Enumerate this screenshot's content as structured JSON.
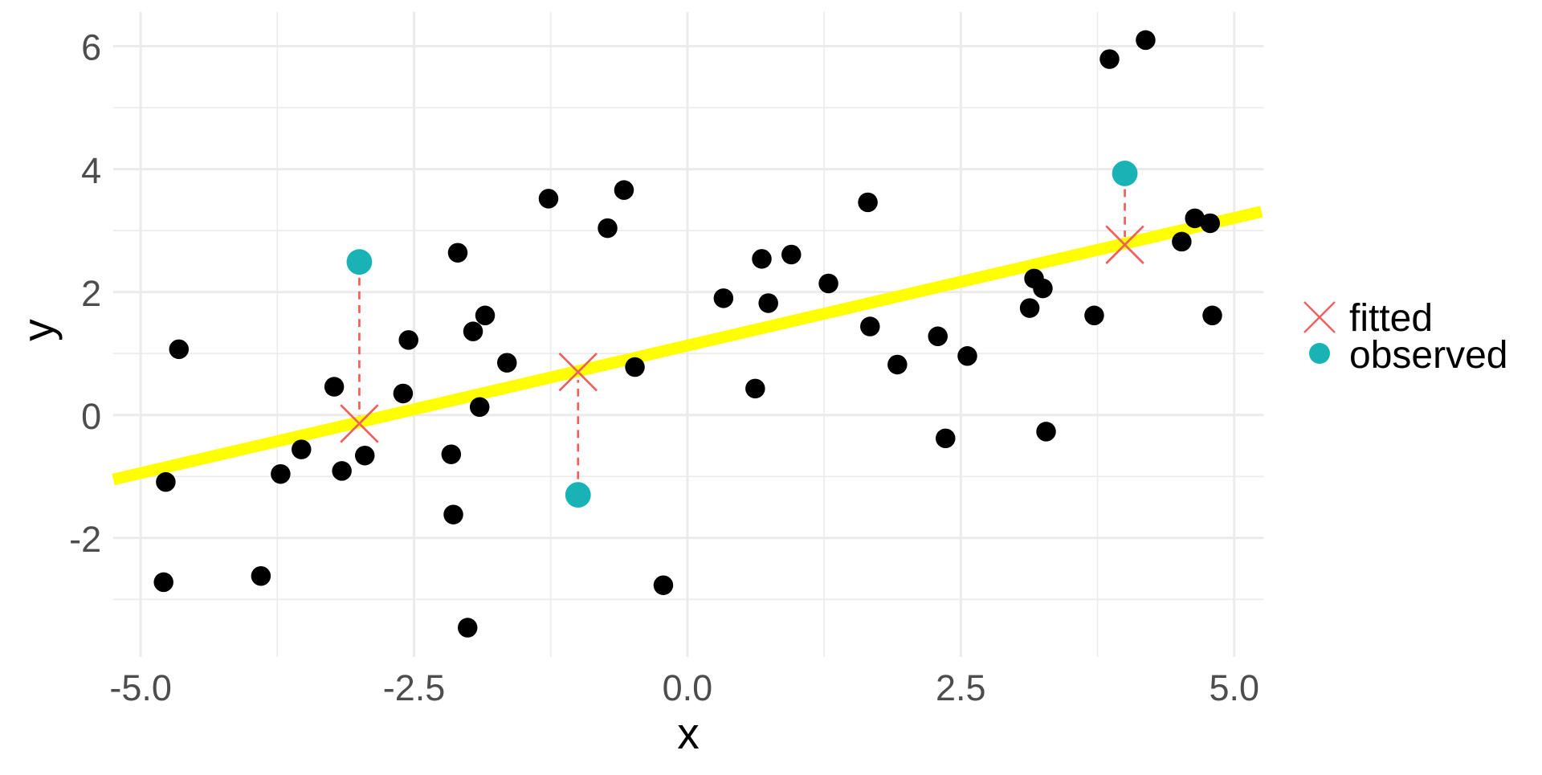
{
  "chart_data": {
    "type": "scatter",
    "title": "",
    "xlabel": "x",
    "ylabel": "y",
    "xlim": [
      -5.25,
      5.25
    ],
    "ylim": [
      -3.9,
      6.55
    ],
    "x_ticks": [
      -5.0,
      -2.5,
      0.0,
      2.5,
      5.0
    ],
    "x_tick_labels": [
      "-5.0",
      "-2.5",
      "0.0",
      "2.5",
      "5.0"
    ],
    "y_ticks": [
      -2,
      0,
      2,
      4,
      6
    ],
    "y_tick_labels": [
      "-2",
      "0",
      "2",
      "4",
      "6"
    ],
    "x_minor_ticks": [
      -3.75,
      -1.25,
      1.25,
      3.75
    ],
    "y_minor_ticks": [
      -3,
      -1,
      1,
      3,
      5
    ],
    "grid": true,
    "legend_position": "right",
    "regression_line": {
      "intercept": 1.13,
      "slope": 0.415,
      "color": "#ffff00",
      "x_range": [
        -5.25,
        5.25
      ]
    },
    "series": [
      {
        "name": "data",
        "kind": "points",
        "color": "#000000",
        "x": [
          -4.65,
          -4.77,
          -4.79,
          -3.9,
          -3.72,
          -3.53,
          -3.23,
          -3.16,
          -2.95,
          -2.6,
          -2.55,
          -2.16,
          -2.14,
          -2.1,
          -2.01,
          -1.96,
          -1.9,
          -1.85,
          -1.65,
          -1.27,
          -0.73,
          -0.58,
          -0.48,
          -0.22,
          0.33,
          0.62,
          0.68,
          0.74,
          0.95,
          1.29,
          1.65,
          1.67,
          1.92,
          2.29,
          2.36,
          2.56,
          3.13,
          3.17,
          3.25,
          3.28,
          3.72,
          3.86,
          4.19,
          4.52,
          4.64,
          4.78,
          4.8
        ],
        "y": [
          1.07,
          -1.09,
          -2.72,
          -2.62,
          -0.96,
          -0.56,
          0.46,
          -0.91,
          -0.66,
          0.35,
          1.22,
          -0.64,
          -1.62,
          2.64,
          -3.46,
          1.36,
          0.13,
          1.62,
          0.85,
          3.52,
          3.04,
          3.66,
          0.78,
          -2.77,
          1.9,
          0.43,
          2.54,
          1.82,
          2.61,
          2.14,
          3.46,
          1.44,
          0.82,
          1.28,
          -0.38,
          0.96,
          1.74,
          2.22,
          2.06,
          -0.27,
          1.62,
          5.79,
          6.1,
          2.82,
          3.2,
          3.12,
          1.62
        ]
      },
      {
        "name": "observed",
        "kind": "points",
        "color": "#19b3b6",
        "x": [
          -3.0,
          -1.0,
          4.0
        ],
        "y": [
          2.49,
          -1.3,
          3.93
        ]
      },
      {
        "name": "fitted",
        "kind": "cross",
        "color": "#f0605a",
        "x": [
          -3.0,
          -1.0,
          4.0
        ],
        "y": [
          -0.14,
          0.7,
          2.77
        ]
      }
    ],
    "residual_segments": {
      "style": "dashed",
      "color": "#f0605a",
      "x": [
        -3.0,
        -1.0,
        4.0
      ]
    },
    "legend": [
      {
        "label": "fitted",
        "symbol": "cross",
        "color": "#f0605a"
      },
      {
        "label": "observed",
        "symbol": "circle",
        "color": "#19b3b6"
      }
    ]
  }
}
